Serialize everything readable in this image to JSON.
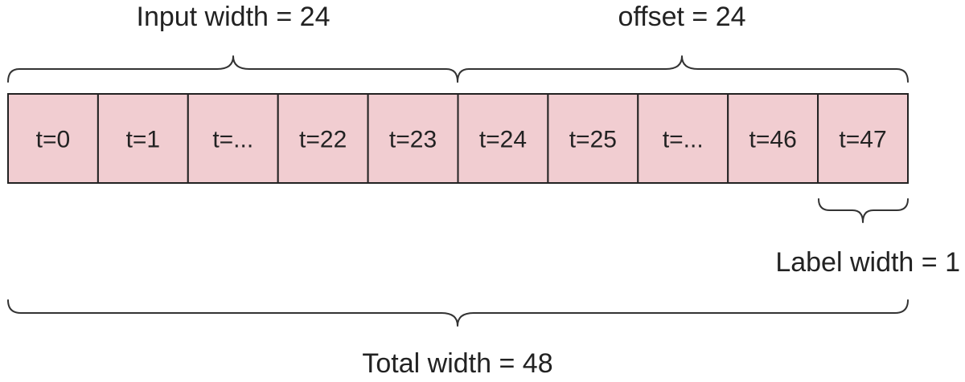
{
  "labels": {
    "input_width": "Input width = 24",
    "offset": "offset = 24",
    "label_width": "Label width = 1",
    "total_width": "Total width = 48"
  },
  "cells": [
    "t=0",
    "t=1",
    "t=...",
    "t=22",
    "t=23",
    "t=24",
    "t=25",
    "t=...",
    "t=46",
    "t=47"
  ],
  "colors": {
    "cell_fill": "#f1cdd1",
    "border": "#222222"
  }
}
